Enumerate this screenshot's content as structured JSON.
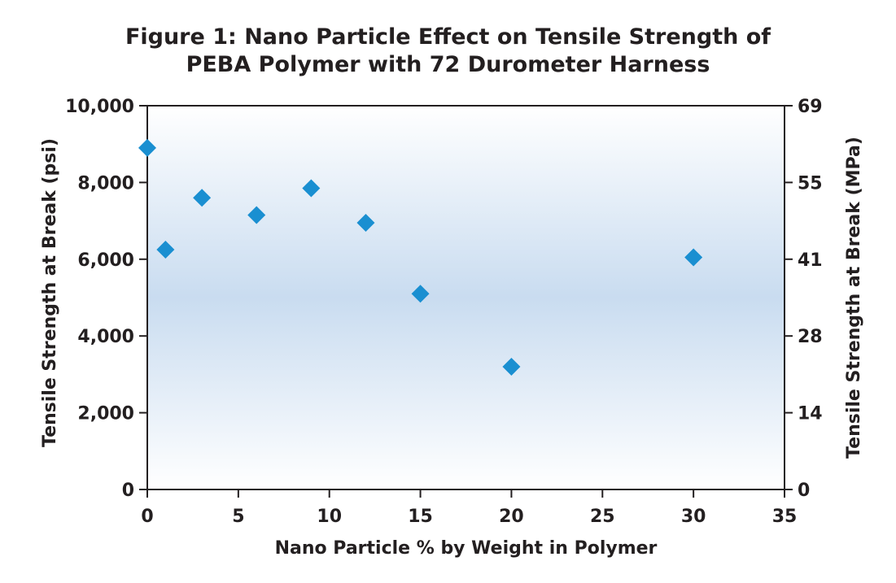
{
  "chart_data": {
    "type": "scatter",
    "title_lines": [
      "Figure 1: Nano Particle Effect on Tensile Strength of",
      "PEBA Polymer with 72 Durometer Harness"
    ],
    "xlabel": "Nano Particle % by Weight in Polymer",
    "ylabel": "Tensile Strength at Break (psi)",
    "y2label": "Tensile Strength at Break (MPa)",
    "xlim": [
      0,
      35
    ],
    "ylim": [
      0,
      10000
    ],
    "x_ticks": [
      0,
      5,
      10,
      15,
      20,
      25,
      30,
      35
    ],
    "x_tick_labels": [
      "0",
      "5",
      "10",
      "15",
      "20",
      "25",
      "30",
      "35"
    ],
    "y_ticks": [
      0,
      2000,
      4000,
      6000,
      8000,
      10000
    ],
    "y_tick_labels": [
      "0",
      "2,000",
      "4,000",
      "6,000",
      "8,000",
      "10,000"
    ],
    "y2_ticks_psi": [
      0,
      2000,
      4000,
      6000,
      8000,
      10000
    ],
    "y2_tick_labels": [
      "0",
      "14",
      "28",
      "41",
      "55",
      "69"
    ],
    "grid": false,
    "marker": "diamond",
    "marker_color": "#1a8fd1",
    "background_gradient": [
      "#ffffff",
      "#c9dcf0",
      "#ffffff"
    ],
    "points": [
      {
        "x": 0,
        "y": 8900
      },
      {
        "x": 1,
        "y": 6250
      },
      {
        "x": 3,
        "y": 7600
      },
      {
        "x": 6,
        "y": 7150
      },
      {
        "x": 9,
        "y": 7850
      },
      {
        "x": 12,
        "y": 6950
      },
      {
        "x": 15,
        "y": 5100
      },
      {
        "x": 20,
        "y": 3200
      },
      {
        "x": 30,
        "y": 6050
      }
    ]
  }
}
